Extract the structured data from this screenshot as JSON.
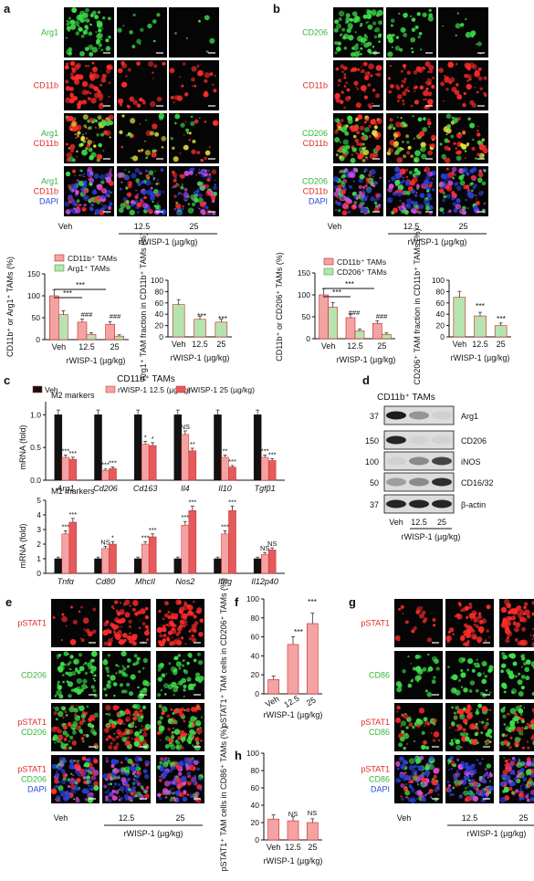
{
  "panel_letters": {
    "a": "a",
    "b": "b",
    "c": "c",
    "d": "d",
    "e": "e",
    "f": "f",
    "g": "g",
    "h": "h"
  },
  "common": {
    "veh": "Veh",
    "d125": "12.5",
    "d25": "25",
    "rwisp": "rWISP-1 (µg/kg)"
  },
  "colors": {
    "red": "#e02a2a",
    "green": "#35b53a",
    "blue": "#2a4bd8",
    "bar_pink": "#f4a3a3",
    "bar_green": "#b6e4b0",
    "bar_red": "#e35b5b",
    "bar_black": "#111111"
  },
  "a": {
    "rows": [
      [
        "Arg1"
      ],
      [
        "CD11b"
      ],
      [
        "Arg1",
        "CD11b"
      ],
      [
        "Arg1",
        "CD11b",
        "DAPI"
      ]
    ],
    "legend": [
      "CD11b⁺ TAMs",
      "Arg1⁺ TAMs"
    ],
    "left_ylabel": "CD11b⁺ or Arg1⁺ TAMs (%)",
    "right_ylabel": "Arg1⁺ TAM fraction in CD11b⁺ TAMs (%)"
  },
  "b": {
    "rows": [
      [
        "CD206"
      ],
      [
        "CD11b"
      ],
      [
        "CD206",
        "CD11b"
      ],
      [
        "CD206",
        "CD11b",
        "DAPI"
      ]
    ],
    "legend": [
      "CD11b⁺ TAMs",
      "CD206⁺ TAMs"
    ],
    "left_ylabel": "CD11b⁺ or CD206⁺ TAMs (%)",
    "right_ylabel": "CD206⁺ TAM fraction in CD11b⁺ TAMs (%)"
  },
  "c": {
    "title": "CD11b⁺ TAMs",
    "legend": [
      "Veh",
      "rWISP-1 12.5 (µg/kg)",
      "rWISP-1 25 (µg/kg)"
    ],
    "m2_label": "M2 markers",
    "m1_label": "M1 markers",
    "ylabel": "mRNA (fold)",
    "m2_genes": [
      "Arg1",
      "Cd206",
      "Cd163",
      "Il4",
      "Il10",
      "Tgfβ1"
    ],
    "m1_genes": [
      "Tnfα",
      "Cd80",
      "MhcII",
      "Nos2",
      "Ifng",
      "Il12p40"
    ]
  },
  "d": {
    "title": "CD11b⁺ TAMs",
    "markers": [
      "37",
      "150",
      "100",
      "50",
      "37"
    ],
    "proteins": [
      "Arg1",
      "CD206",
      "iNOS",
      "CD16/32",
      "β-actin"
    ]
  },
  "e": {
    "rows": [
      [
        "pSTAT1"
      ],
      [
        "CD206"
      ],
      [
        "pSTAT1",
        "CD206"
      ],
      [
        "pSTAT1",
        "CD206",
        "DAPI"
      ]
    ]
  },
  "g": {
    "rows": [
      [
        "pSTAT1"
      ],
      [
        "CD86"
      ],
      [
        "pSTAT1",
        "CD86"
      ],
      [
        "pSTAT1",
        "CD86",
        "DAPI"
      ]
    ]
  },
  "f": {
    "ylabel": "pSTAT1⁺ TAM cells in CD206⁺ TAMs (%)"
  },
  "h": {
    "ylabel": "pSTAT1⁺ TAM cells in CD86⁺ TAMs (%)"
  },
  "chart_data": [
    {
      "panel": "a-left",
      "type": "bar",
      "categories": [
        "Veh",
        "12.5",
        "25"
      ],
      "series": [
        {
          "name": "CD11b⁺ TAMs",
          "values": [
            100,
            40,
            35
          ]
        },
        {
          "name": "Arg1⁺ TAMs",
          "values": [
            57,
            12,
            8
          ]
        }
      ],
      "ylabel": "CD11b⁺ or Arg1⁺ TAMs (%)",
      "xlabel": "rWISP-1 (µg/kg)",
      "ylim": [
        0,
        150
      ],
      "yticks": [
        0,
        50,
        100,
        150
      ],
      "annotations": [
        "***",
        "***",
        "###",
        "###"
      ]
    },
    {
      "panel": "a-right",
      "type": "bar",
      "categories": [
        "Veh",
        "12.5",
        "25"
      ],
      "values": [
        57,
        31,
        26
      ],
      "ylabel": "Arg1⁺ TAM fraction in CD11b⁺ TAMs (%)",
      "xlabel": "rWISP-1 (µg/kg)",
      "ylim": [
        0,
        100
      ],
      "yticks": [
        0,
        20,
        40,
        60,
        80,
        100
      ],
      "annotations": [
        "***",
        "***"
      ]
    },
    {
      "panel": "b-left",
      "type": "bar",
      "categories": [
        "Veh",
        "12.5",
        "25"
      ],
      "series": [
        {
          "name": "CD11b⁺ TAMs",
          "values": [
            100,
            48,
            35
          ]
        },
        {
          "name": "CD206⁺ TAMs",
          "values": [
            72,
            18,
            10
          ]
        }
      ],
      "ylabel": "CD11b⁺ or CD206⁺ TAMs (%)",
      "xlabel": "rWISP-1 (µg/kg)",
      "ylim": [
        0,
        150
      ],
      "yticks": [
        0,
        50,
        100,
        150
      ],
      "annotations": [
        "***",
        "***",
        "###",
        "###"
      ]
    },
    {
      "panel": "b-right",
      "type": "bar",
      "categories": [
        "Veh",
        "12.5",
        "25"
      ],
      "values": [
        70,
        37,
        20
      ],
      "ylabel": "CD206⁺ TAM fraction in CD11b⁺ TAMs (%)",
      "xlabel": "rWISP-1 (µg/kg)",
      "ylim": [
        0,
        100
      ],
      "yticks": [
        0,
        20,
        40,
        60,
        80,
        100
      ],
      "annotations": [
        "***",
        "***"
      ]
    },
    {
      "panel": "c-M2",
      "type": "bar",
      "categories": [
        "Arg1",
        "Cd206",
        "Cd163",
        "Il4",
        "Il10",
        "Tgfβ1"
      ],
      "series": [
        {
          "name": "Veh",
          "values": [
            1.0,
            1.0,
            1.0,
            1.0,
            1.0,
            1.0
          ]
        },
        {
          "name": "rWISP-1 12.5 (µg/kg)",
          "values": [
            0.35,
            0.15,
            0.55,
            0.7,
            0.35,
            0.35
          ]
        },
        {
          "name": "rWISP-1 25 (µg/kg)",
          "values": [
            0.32,
            0.18,
            0.53,
            0.45,
            0.2,
            0.3
          ]
        }
      ],
      "ylabel": "mRNA (fold)",
      "ylim": [
        0,
        1.2
      ],
      "yticks": [
        0,
        0.5,
        1.0
      ],
      "annotations": [
        "***",
        "***",
        "***",
        "***",
        "*",
        "*",
        "NS",
        "**",
        "**",
        "***",
        "***",
        "***"
      ]
    },
    {
      "panel": "c-M1",
      "type": "bar",
      "categories": [
        "Tnfα",
        "Cd80",
        "MhcII",
        "Nos2",
        "Ifng",
        "Il12p40"
      ],
      "series": [
        {
          "name": "Veh",
          "values": [
            1,
            1,
            1,
            1,
            1,
            1
          ]
        },
        {
          "name": "rWISP-1 12.5 (µg/kg)",
          "values": [
            2.7,
            1.7,
            2.0,
            3.3,
            2.7,
            1.3
          ]
        },
        {
          "name": "rWISP-1 25 (µg/kg)",
          "values": [
            3.5,
            2.0,
            2.5,
            4.3,
            4.3,
            1.6
          ]
        }
      ],
      "ylabel": "mRNA (fold)",
      "ylim": [
        0,
        5
      ],
      "yticks": [
        0,
        1,
        2,
        3,
        4,
        5
      ],
      "annotations": [
        "***",
        "***",
        "NS",
        "*",
        "***",
        "***",
        "***",
        "***",
        "***",
        "***",
        "NS",
        "NS"
      ]
    },
    {
      "panel": "f",
      "type": "bar",
      "categories": [
        "Veh",
        "12.5",
        "25"
      ],
      "values": [
        15,
        52,
        74
      ],
      "ylabel": "pSTAT1⁺ TAM cells in CD206⁺ TAMs (%)",
      "xlabel": "rWISP-1 (µg/kg)",
      "ylim": [
        0,
        100
      ],
      "yticks": [
        0,
        20,
        40,
        60,
        80,
        100
      ],
      "annotations": [
        "***",
        "***"
      ]
    },
    {
      "panel": "h",
      "type": "bar",
      "categories": [
        "Veh",
        "12.5",
        "25"
      ],
      "values": [
        24,
        22,
        20
      ],
      "ylabel": "pSTAT1⁺ TAM cells in CD86⁺ TAMs (%)",
      "xlabel": "rWISP-1 (µg/kg)",
      "ylim": [
        0,
        100
      ],
      "yticks": [
        0,
        20,
        40,
        60,
        80,
        100
      ],
      "annotations": [
        "NS",
        "NS"
      ]
    }
  ]
}
